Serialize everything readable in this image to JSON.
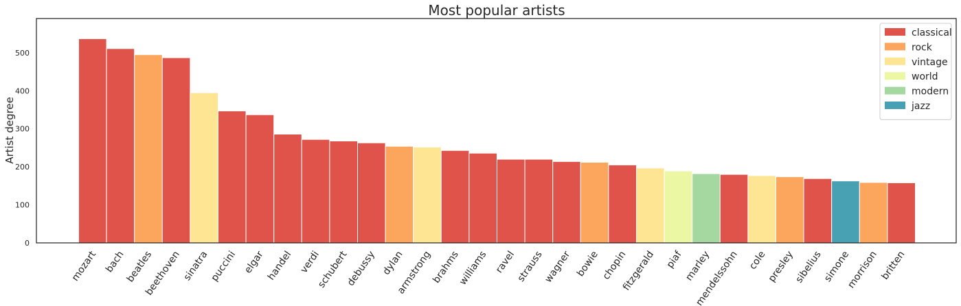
{
  "chart_data": {
    "type": "bar",
    "title": "Most popular artists",
    "xlabel": "",
    "ylabel": "Artist degree",
    "ylim": [
      0,
      590
    ],
    "yticks": [
      0,
      100,
      200,
      300,
      400,
      500
    ],
    "grid": false,
    "legend_position": "top-right",
    "genres": [
      {
        "name": "classical",
        "color": "#e0534a"
      },
      {
        "name": "rock",
        "color": "#fca55d"
      },
      {
        "name": "vintage",
        "color": "#fee593"
      },
      {
        "name": "world",
        "color": "#ebf7a2"
      },
      {
        "name": "modern",
        "color": "#a5d8a1"
      },
      {
        "name": "jazz",
        "color": "#48a0b3"
      }
    ],
    "categories": [
      "mozart",
      "bach",
      "beatles",
      "beethoven",
      "sinatra",
      "puccini",
      "elgar",
      "handel",
      "verdi",
      "schubert",
      "debussy",
      "dylan",
      "armstrong",
      "brahms",
      "williams",
      "ravel",
      "strauss",
      "wagner",
      "bowie",
      "chopin",
      "fitzgerald",
      "piaf",
      "marley",
      "mendelssohn",
      "cole",
      "presley",
      "sibelius",
      "simone",
      "morrison",
      "britten"
    ],
    "values": [
      537,
      511,
      495,
      487,
      395,
      347,
      337,
      286,
      272,
      268,
      263,
      254,
      252,
      243,
      236,
      220,
      220,
      214,
      212,
      205,
      197,
      189,
      182,
      180,
      177,
      174,
      169,
      163,
      159,
      158
    ],
    "genre_of": [
      "classical",
      "classical",
      "rock",
      "classical",
      "vintage",
      "classical",
      "classical",
      "classical",
      "classical",
      "classical",
      "classical",
      "rock",
      "vintage",
      "classical",
      "classical",
      "classical",
      "classical",
      "classical",
      "rock",
      "classical",
      "vintage",
      "world",
      "modern",
      "classical",
      "vintage",
      "rock",
      "classical",
      "jazz",
      "rock",
      "classical"
    ]
  }
}
